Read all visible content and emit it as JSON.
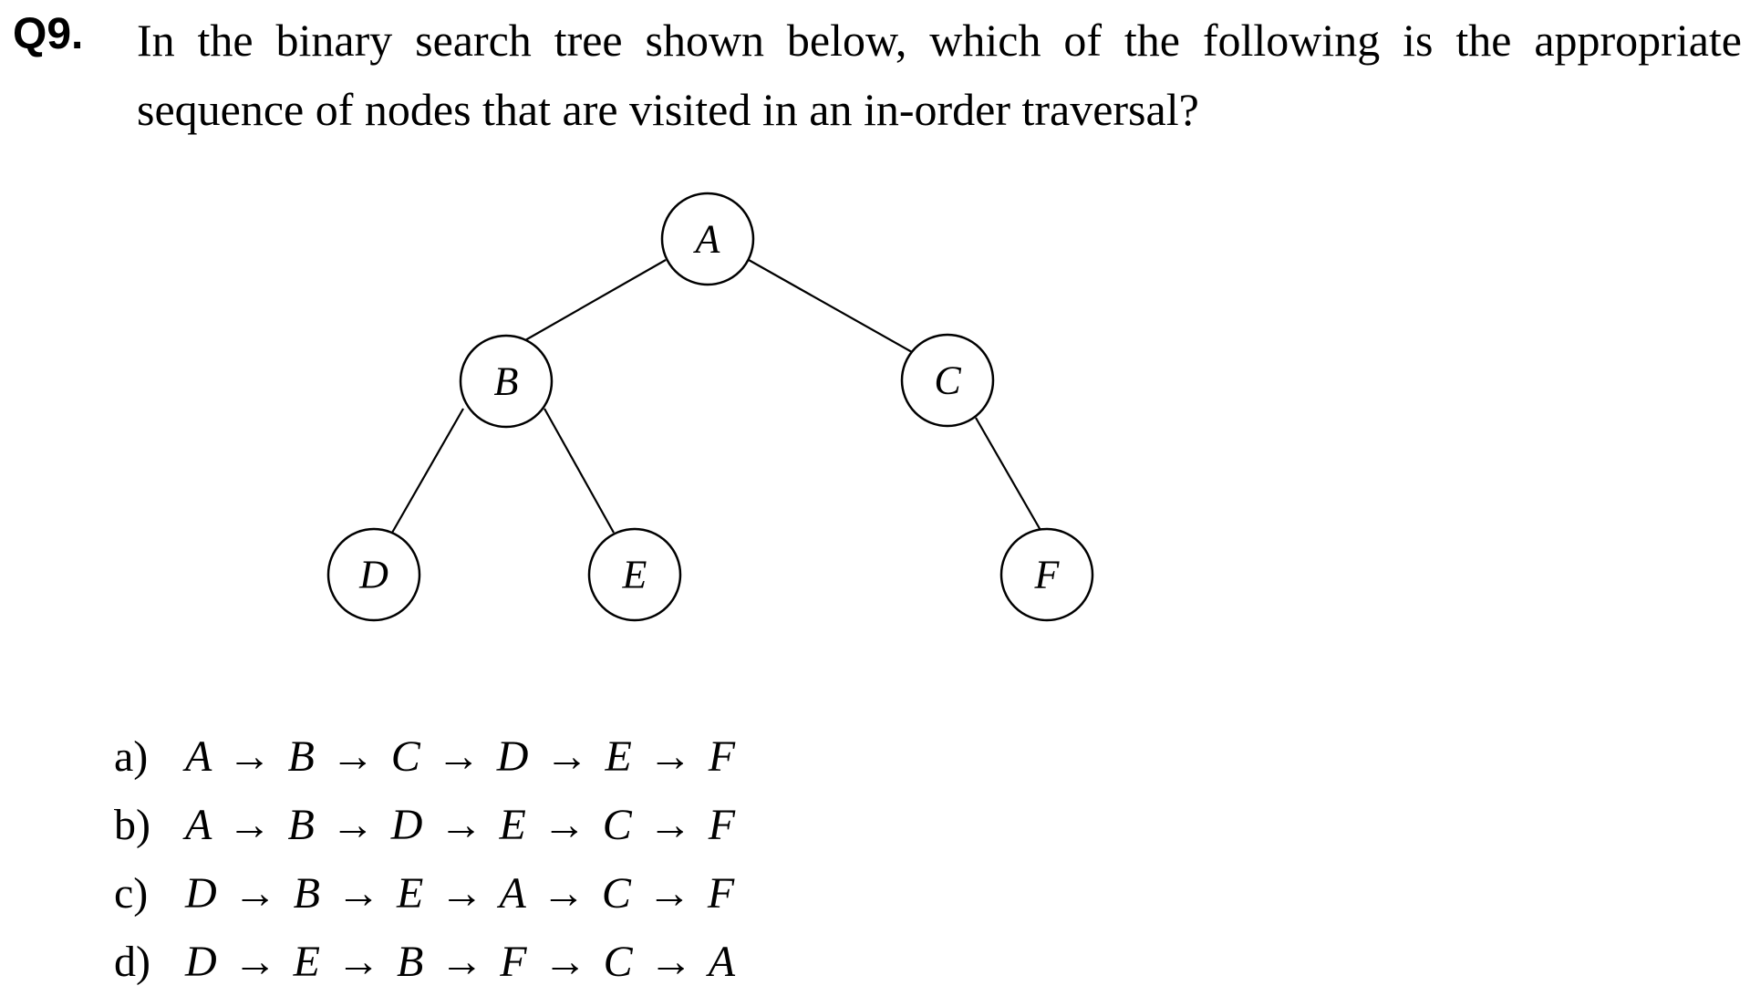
{
  "question": {
    "number": "Q9.",
    "text": "In the binary search tree shown below, which of the following is the appropriate sequence of nodes that are visited in an in-order traversal?"
  },
  "tree": {
    "nodes": [
      {
        "id": "A",
        "label": "A"
      },
      {
        "id": "B",
        "label": "B"
      },
      {
        "id": "C",
        "label": "C"
      },
      {
        "id": "D",
        "label": "D"
      },
      {
        "id": "E",
        "label": "E"
      },
      {
        "id": "F",
        "label": "F"
      }
    ],
    "edges": [
      [
        "A",
        "B"
      ],
      [
        "A",
        "C"
      ],
      [
        "B",
        "D"
      ],
      [
        "B",
        "E"
      ],
      [
        "C",
        "F"
      ]
    ]
  },
  "options": [
    {
      "letter": "a)",
      "sequence": "A  →  B  →  C  →  D  →  E  →  F"
    },
    {
      "letter": "b)",
      "sequence": "A  →  B  →  D  →  E  →  C  →  F"
    },
    {
      "letter": "c)",
      "sequence": "D  →  B  →  E  →  A  →  C  →  F"
    },
    {
      "letter": "d)",
      "sequence": "D  →  E  →  B  →  F  →  C  →  A"
    }
  ]
}
